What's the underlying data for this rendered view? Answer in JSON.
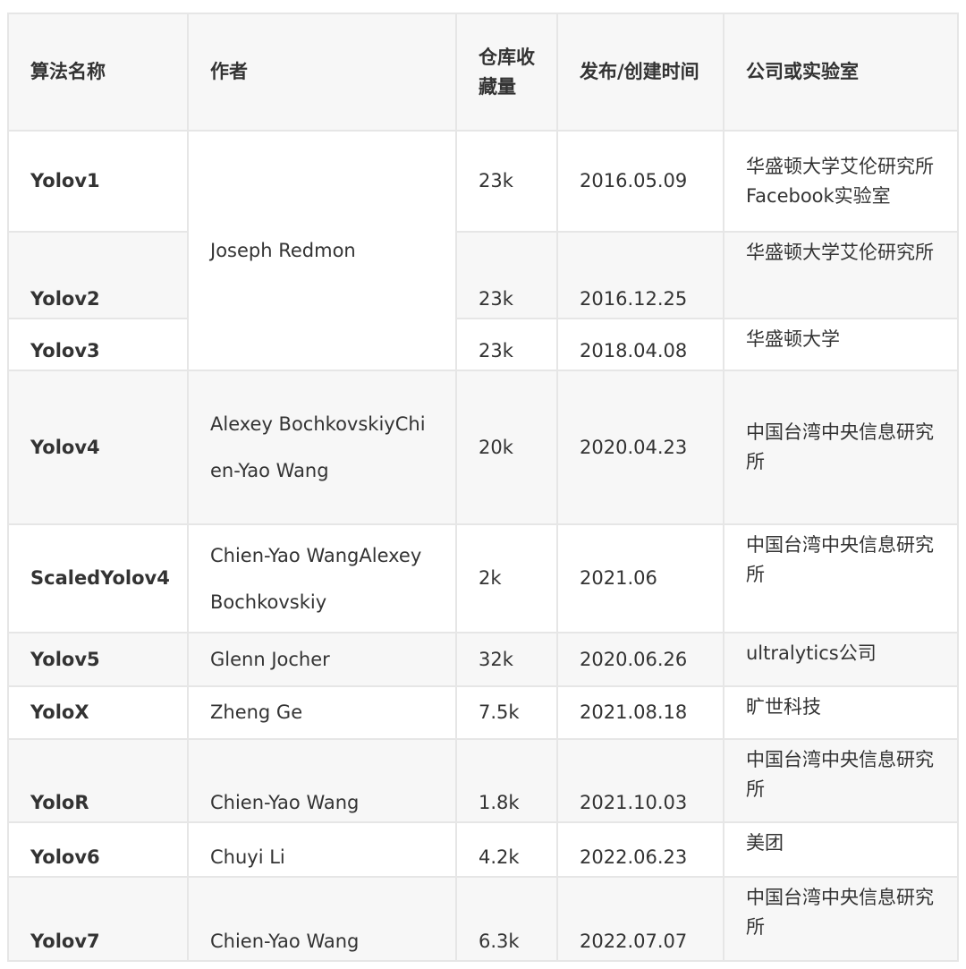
{
  "headers": [
    "算法名称",
    "作者",
    "仓库收藏量",
    "发布/创建时间",
    "公司或实验室"
  ],
  "rows": [
    {
      "name": "Yolov1",
      "author": "Joseph Redmon",
      "stars": "23k",
      "date": "2016.05.09",
      "org": "华盛顿大学艾伦研究所Facebook实验室"
    },
    {
      "name": "Yolov2",
      "author": "",
      "stars": "23k",
      "date": "2016.12.25",
      "org": "华盛顿大学艾伦研究所"
    },
    {
      "name": "Yolov3",
      "author": "",
      "stars": "23k",
      "date": "2018.04.08",
      "org": "华盛顿大学"
    },
    {
      "name": "Yolov4",
      "author": "Alexey BochkovskiyChien-Yao Wang",
      "stars": "20k",
      "date": "2020.04.23",
      "org": "中国台湾中央信息研究所"
    },
    {
      "name": "ScaledYolov4",
      "author": "Chien-Yao WangAlexey Bochkovskiy",
      "stars": "2k",
      "date": "2021.06",
      "org": "中国台湾中央信息研究所"
    },
    {
      "name": "Yolov5",
      "author": "Glenn Jocher",
      "stars": "32k",
      "date": "2020.06.26",
      "org": "ultralytics公司"
    },
    {
      "name": "YoloX",
      "author": "Zheng Ge",
      "stars": "7.5k",
      "date": "2021.08.18",
      "org": "旷世科技"
    },
    {
      "name": "YoloR",
      "author": "Chien-Yao Wang",
      "stars": "1.8k",
      "date": "2021.10.03",
      "org": "中国台湾中央信息研究所"
    },
    {
      "name": "Yolov6",
      "author": "Chuyi Li",
      "stars": "4.2k",
      "date": "2022.06.23",
      "org": "美团"
    },
    {
      "name": "Yolov7",
      "author": "Chien-Yao Wang",
      "stars": "6.3k",
      "date": "2022.07.07",
      "org": "中国台湾中央信息研究所"
    }
  ]
}
